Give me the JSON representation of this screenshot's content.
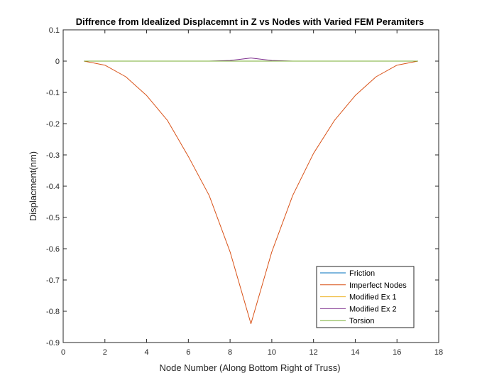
{
  "chart_data": {
    "type": "line",
    "title": "Diffrence from Idealized Displacemnt in Z vs Nodes with Varied FEM Peramiters",
    "xlabel": "Node Number (Along Bottom Right of Truss)",
    "ylabel": "Displacment(nm)",
    "xlim": [
      0,
      18
    ],
    "ylim": [
      -0.9,
      0.1
    ],
    "xticks": [
      0,
      2,
      4,
      6,
      8,
      10,
      12,
      14,
      16,
      18
    ],
    "yticks": [
      0.1,
      0,
      -0.1,
      -0.2,
      -0.3,
      -0.4,
      -0.5,
      -0.6,
      -0.7,
      -0.8,
      -0.9
    ],
    "grid": false,
    "legend_location": "bottom-right",
    "x": [
      1,
      2,
      3,
      4,
      5,
      6,
      7,
      8,
      9,
      10,
      11,
      12,
      13,
      14,
      15,
      16,
      17
    ],
    "series": [
      {
        "name": "Friction",
        "color": "#0072BD",
        "values": [
          0,
          0,
          0,
          0,
          0,
          0,
          0,
          0,
          0,
          0,
          0,
          0,
          0,
          0,
          0,
          0,
          0
        ]
      },
      {
        "name": "Imperfect Nodes",
        "color": "#D95319",
        "values": [
          0,
          -0.013,
          -0.05,
          -0.11,
          -0.19,
          -0.305,
          -0.43,
          -0.61,
          -0.84,
          -0.61,
          -0.43,
          -0.295,
          -0.19,
          -0.11,
          -0.05,
          -0.013,
          0
        ]
      },
      {
        "name": "Modified Ex 1",
        "color": "#EDB120",
        "values": [
          0,
          0,
          0,
          0,
          0,
          0,
          0,
          0,
          0,
          0,
          0,
          0,
          0,
          0,
          0,
          0,
          0
        ]
      },
      {
        "name": "Modified Ex 2",
        "color": "#7E2F8E",
        "values": [
          0,
          0,
          0,
          0,
          0,
          0,
          0,
          0.002,
          0.01,
          0.002,
          0,
          0,
          0,
          0,
          0,
          0,
          0
        ]
      },
      {
        "name": "Torsion",
        "color": "#77AC30",
        "values": [
          0,
          0,
          0,
          0,
          0,
          0,
          0,
          0,
          0,
          0,
          0,
          0,
          0,
          0,
          0,
          0,
          0
        ]
      }
    ]
  }
}
